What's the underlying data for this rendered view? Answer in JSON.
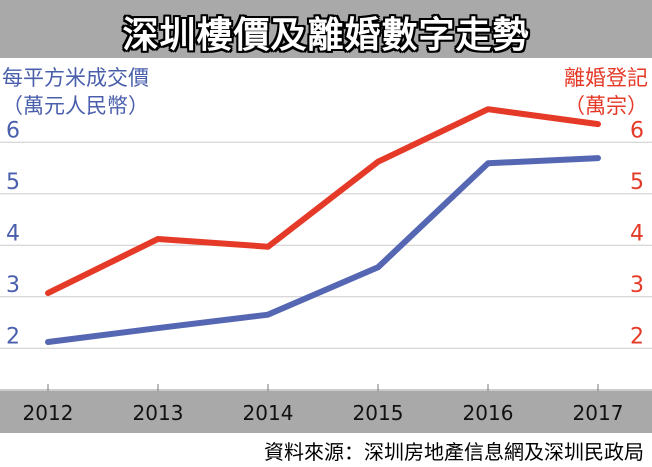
{
  "title": "深圳樓價及離婚數字走勢",
  "left_axis_title": [
    "每平方米成交價",
    "（萬元人民幣）"
  ],
  "right_axis_title": [
    "離婚登記",
    "（萬宗）"
  ],
  "source": "資料來源：深圳房地產信息網及深圳民政局",
  "colors": {
    "price": "#5567b3",
    "divorce": "#e53a28",
    "left_axis": "#4a5fac",
    "right_axis": "#e53a28",
    "grid": "#cccccc",
    "strip": "#a9a9a9"
  },
  "chart_data": {
    "type": "line",
    "categories": [
      "2012",
      "2013",
      "2014",
      "2015",
      "2016",
      "2017"
    ],
    "series": [
      {
        "name": "每平方米成交價（萬元人民幣）",
        "axis": "left",
        "color": "#5567b3",
        "values": [
          1.85,
          2.12,
          2.38,
          3.3,
          5.32,
          5.42
        ]
      },
      {
        "name": "離婚登記（萬宗）",
        "axis": "right",
        "color": "#e53a28",
        "values": [
          2.8,
          3.85,
          3.7,
          5.35,
          6.37,
          6.08
        ]
      }
    ],
    "y_ticks_left": [
      "2",
      "3",
      "4",
      "5",
      "6"
    ],
    "y_ticks_right": [
      "2",
      "3",
      "4",
      "5",
      "6"
    ],
    "ylim": [
      1,
      6.5
    ],
    "grid": true
  }
}
